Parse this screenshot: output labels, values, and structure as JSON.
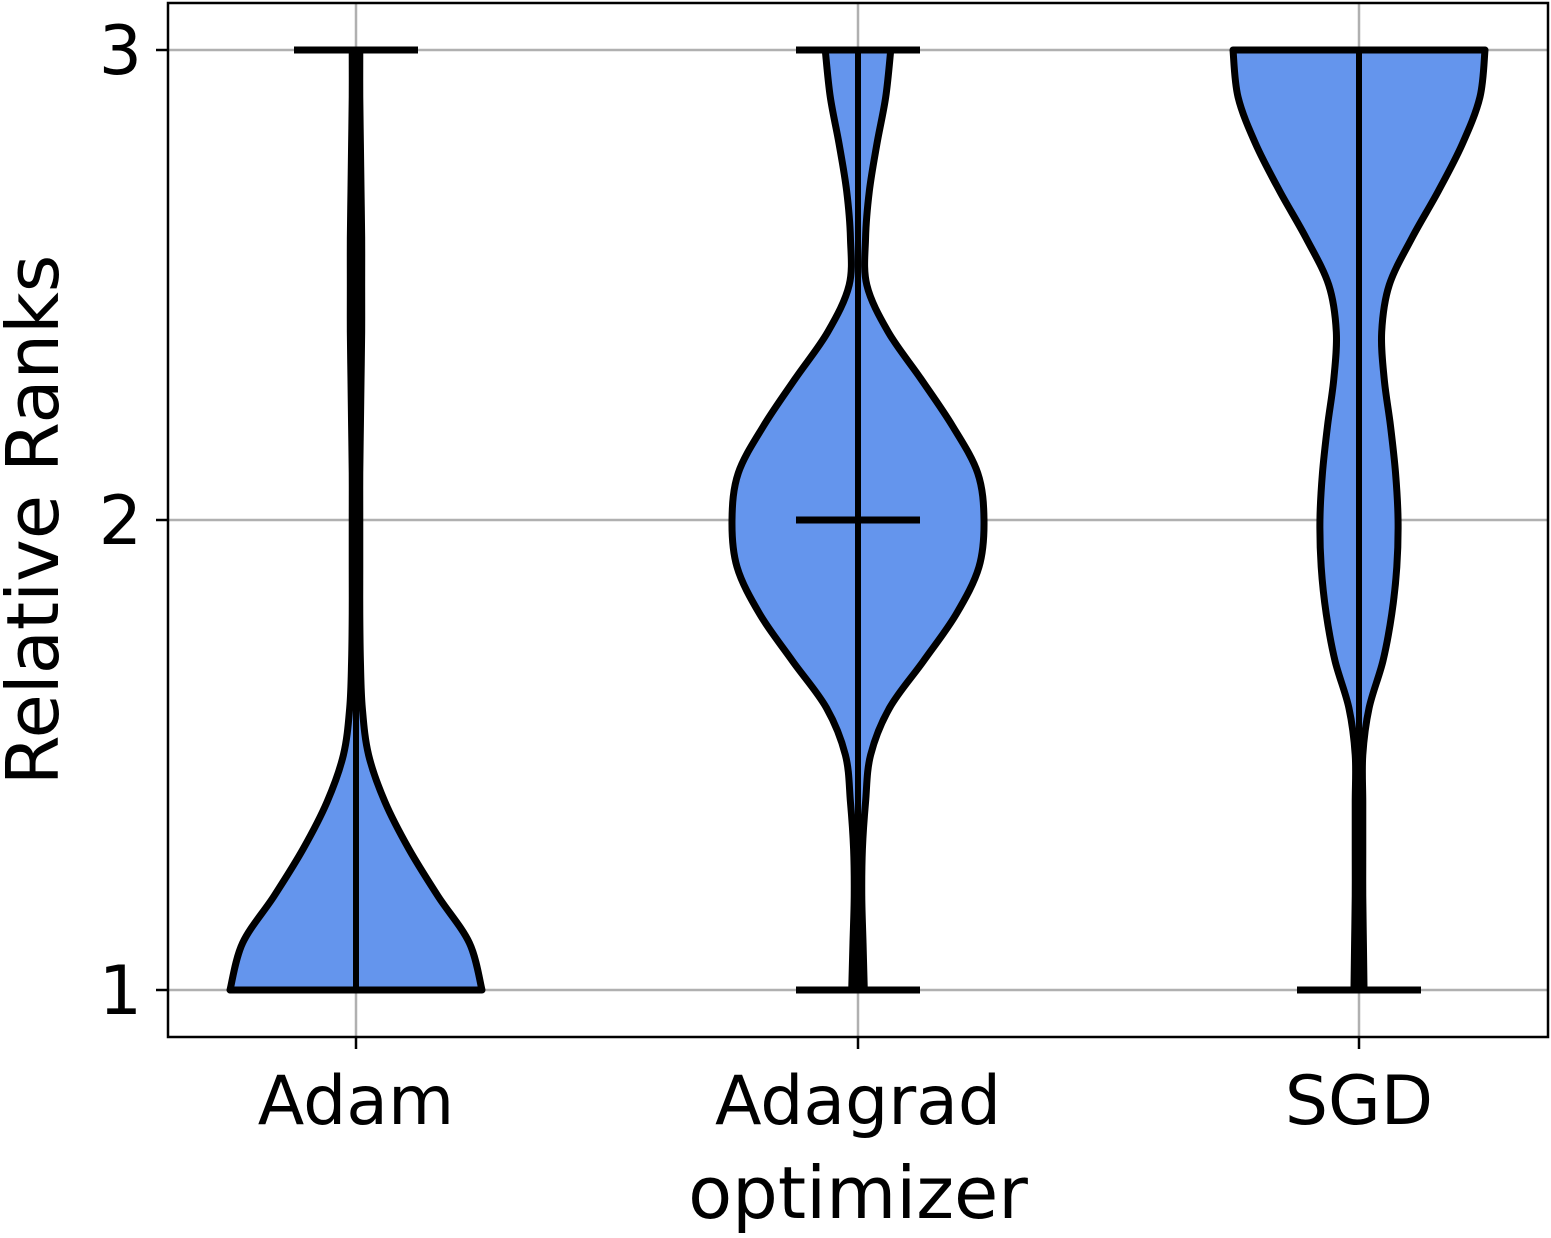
{
  "chart_data": {
    "type": "violin",
    "title": "",
    "xlabel": "optimizer",
    "ylabel": "Relative Ranks",
    "categories": [
      "Adam",
      "Adagrad",
      "SGD"
    ],
    "y_ticks": [
      "1",
      "2",
      "3"
    ],
    "ylim": [
      0.9,
      3.1
    ],
    "grid": true,
    "fill_color": "#6495ED",
    "edge_color": "#000000",
    "grid_color": "#b0b0b0",
    "show_median": true,
    "violins": [
      {
        "category": "Adam",
        "min": 1,
        "max": 3,
        "median": 1,
        "density": [
          [
            1.0,
            1.0
          ],
          [
            1.1,
            0.9
          ],
          [
            1.2,
            0.65
          ],
          [
            1.3,
            0.42
          ],
          [
            1.4,
            0.23
          ],
          [
            1.5,
            0.1
          ],
          [
            1.6,
            0.05
          ],
          [
            1.7,
            0.035
          ],
          [
            1.8,
            0.03
          ],
          [
            1.9,
            0.03
          ],
          [
            2.0,
            0.03
          ],
          [
            2.1,
            0.03
          ],
          [
            2.2,
            0.035
          ],
          [
            2.3,
            0.04
          ],
          [
            2.4,
            0.045
          ],
          [
            2.5,
            0.045
          ],
          [
            2.6,
            0.045
          ],
          [
            2.7,
            0.04
          ],
          [
            2.8,
            0.035
          ],
          [
            2.9,
            0.03
          ],
          [
            3.0,
            0.03
          ]
        ]
      },
      {
        "category": "Adagrad",
        "min": 1,
        "max": 3,
        "median": 2,
        "density": [
          [
            1.0,
            0.05
          ],
          [
            1.1,
            0.04
          ],
          [
            1.2,
            0.03
          ],
          [
            1.3,
            0.035
          ],
          [
            1.4,
            0.06
          ],
          [
            1.5,
            0.1
          ],
          [
            1.6,
            0.25
          ],
          [
            1.7,
            0.52
          ],
          [
            1.8,
            0.78
          ],
          [
            1.9,
            0.96
          ],
          [
            2.0,
            1.0
          ],
          [
            2.1,
            0.95
          ],
          [
            2.2,
            0.75
          ],
          [
            2.3,
            0.5
          ],
          [
            2.4,
            0.24
          ],
          [
            2.5,
            0.07
          ],
          [
            2.6,
            0.06
          ],
          [
            2.7,
            0.09
          ],
          [
            2.8,
            0.15
          ],
          [
            2.9,
            0.22
          ],
          [
            3.0,
            0.26
          ]
        ]
      },
      {
        "category": "SGD",
        "min": 1,
        "max": 3,
        "median": 3,
        "density": [
          [
            1.0,
            0.04
          ],
          [
            1.1,
            0.035
          ],
          [
            1.2,
            0.03
          ],
          [
            1.3,
            0.03
          ],
          [
            1.4,
            0.03
          ],
          [
            1.5,
            0.03
          ],
          [
            1.6,
            0.08
          ],
          [
            1.7,
            0.19
          ],
          [
            1.8,
            0.26
          ],
          [
            1.9,
            0.3
          ],
          [
            2.0,
            0.31
          ],
          [
            2.1,
            0.29
          ],
          [
            2.2,
            0.25
          ],
          [
            2.3,
            0.2
          ],
          [
            2.4,
            0.18
          ],
          [
            2.5,
            0.24
          ],
          [
            2.6,
            0.42
          ],
          [
            2.7,
            0.63
          ],
          [
            2.8,
            0.82
          ],
          [
            2.9,
            0.96
          ],
          [
            3.0,
            1.0
          ]
        ]
      }
    ]
  }
}
